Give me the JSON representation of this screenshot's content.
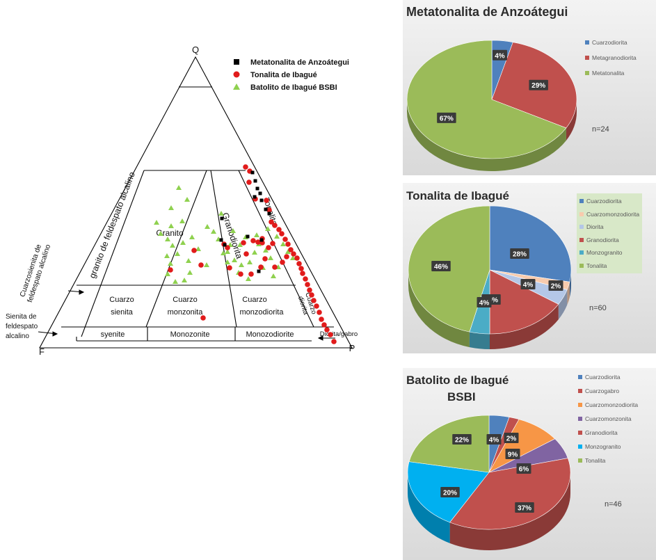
{
  "qap": {
    "vertices": {
      "Q": "Q",
      "A": "F",
      "P": "P"
    },
    "legend": [
      {
        "name": "Metatonalita de Anzoátegui",
        "marker": "square",
        "color": "#000000"
      },
      {
        "name": "Tonalita de Ibagué",
        "marker": "circle",
        "color": "#e11b1b"
      },
      {
        "name": "Batolito de Ibagué BSBI",
        "marker": "triangle",
        "color": "#8fd14f"
      }
    ],
    "labels": {
      "granito_feld": "granito de feldespato alcalino",
      "cuarzosienita": [
        "Cuarzosienita de",
        "feldespato alcalino"
      ],
      "granito": "Granito",
      "granodiorita": "Granodiorita",
      "tonalita": "Tonalita",
      "cuarzo_sienita": [
        "Cuarzo",
        "sienita"
      ],
      "cuarzo_monzonita": [
        "Cuarzo",
        "monzonita"
      ],
      "cuarzo_monzodiorita": [
        "Cuarzo",
        "monzodiorita"
      ],
      "cuarzo_diorita": [
        "Cuarzo",
        "diorita"
      ],
      "syenite": "syenite",
      "monzonite": "Monozonite",
      "monzodiorite": "Monozodiorite",
      "sienita_feld": [
        "Sienita de",
        "feldespato",
        "alcalino"
      ],
      "diorita_gabro": "Diorita/gabro"
    }
  },
  "chart_data": [
    {
      "type": "pie",
      "title": "Metatonalita de Anzoátegui",
      "note": "n=24",
      "categories": [
        "Cuarzodiorita",
        "Metagranodiorita",
        "Metatonalita"
      ],
      "values": [
        4,
        29,
        67
      ],
      "labels": [
        "4%",
        "29%",
        "67%"
      ],
      "colors": [
        "#4f81bd",
        "#c0504d",
        "#9bbb59"
      ],
      "legend_position": "right"
    },
    {
      "type": "pie",
      "title": "Tonalita de Ibagué",
      "note": "n=60",
      "categories": [
        "Cuarzodiorita",
        "Cuarzomonzodiorita",
        "Diorita",
        "Granodiorita",
        "Monzogranito",
        "Tonalita"
      ],
      "values": [
        28,
        2,
        4,
        16,
        4,
        46
      ],
      "labels": [
        "28%",
        "2%",
        "4%",
        "16%",
        "4%",
        "46%"
      ],
      "colors": [
        "#4f81bd",
        "#f8cbad",
        "#b4c7e7",
        "#c0504d",
        "#4bacc6",
        "#9bbb59"
      ],
      "legend_position": "right"
    },
    {
      "type": "pie",
      "title": "Batolito de Ibagué BSBI",
      "note": "n=46",
      "categories": [
        "Cuarzodiorita",
        "Cuarzogabro",
        "Cuarzomonzodiorita",
        "Cuarzomonzonita",
        "Granodiorita",
        "Monzogranito",
        "Tonalita"
      ],
      "values": [
        4,
        2,
        9,
        6,
        37,
        20,
        22
      ],
      "labels": [
        "4%",
        "2%",
        "9%",
        "6%",
        "37%",
        "20%",
        "22%"
      ],
      "colors": [
        "#4f81bd",
        "#c0504d",
        "#f79646",
        "#8064a2",
        "#c0504d",
        "#00b0f0",
        "#9bbb59"
      ],
      "legend_position": "right"
    }
  ]
}
